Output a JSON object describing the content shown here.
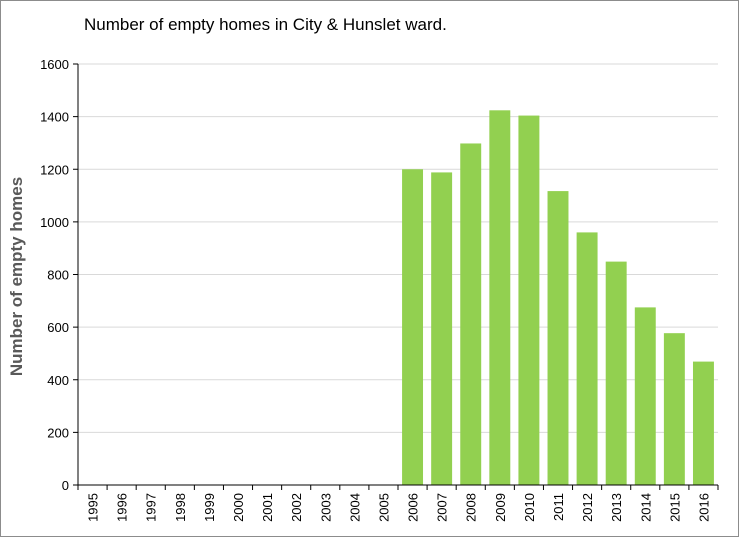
{
  "chart_data": {
    "type": "bar",
    "title": "Number of empty homes in City & Hunslet ward.",
    "xlabel": "",
    "ylabel": "Number of empty homes",
    "categories": [
      "1995",
      "1996",
      "1997",
      "1998",
      "1999",
      "2000",
      "2001",
      "2002",
      "2003",
      "2004",
      "2005",
      "2006",
      "2007",
      "2008",
      "2009",
      "2010",
      "2011",
      "2012",
      "2013",
      "2014",
      "2015",
      "2016"
    ],
    "values": [
      0,
      0,
      0,
      0,
      0,
      0,
      0,
      0,
      0,
      0,
      0,
      1200,
      1188,
      1298,
      1424,
      1404,
      1117,
      960,
      849,
      675,
      577,
      469
    ],
    "ylim": [
      0,
      1600
    ],
    "yticks": [
      0,
      200,
      400,
      600,
      800,
      1000,
      1200,
      1400,
      1600
    ],
    "grid": true,
    "bar_color": "#92d050"
  }
}
